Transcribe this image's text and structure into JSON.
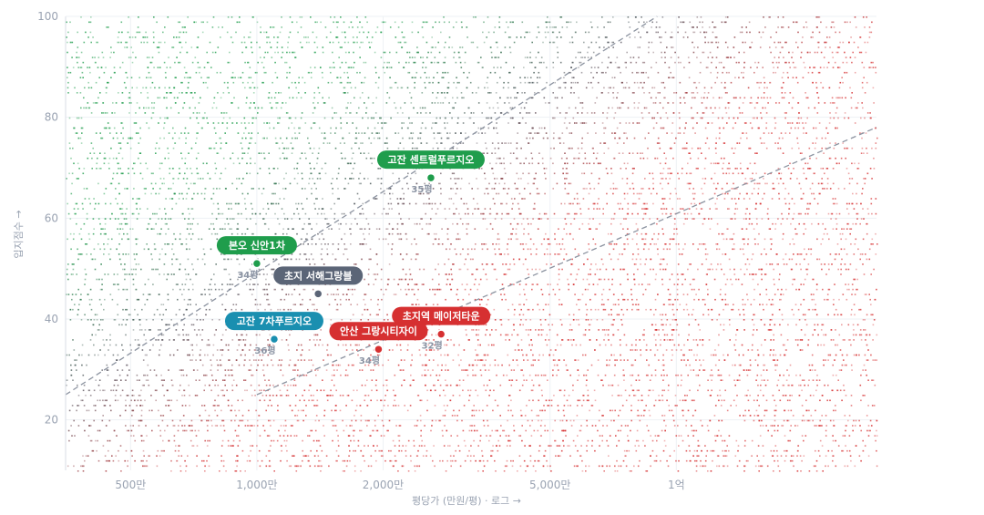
{
  "chart_data": {
    "type": "scatter",
    "title": "",
    "xlabel": "평당가 (만원/평) · 로그 →",
    "ylabel": "입지점수 →",
    "x_scale": "log",
    "xlim": [
      350,
      30000
    ],
    "ylim": [
      10,
      100
    ],
    "x_ticks": [
      {
        "value": 500,
        "label": "500만"
      },
      {
        "value": 1000,
        "label": "1,000만"
      },
      {
        "value": 2000,
        "label": "2,000만"
      },
      {
        "value": 5000,
        "label": "5,000만"
      },
      {
        "value": 10000,
        "label": "1억"
      }
    ],
    "y_ticks": [
      {
        "value": 20,
        "label": "20"
      },
      {
        "value": 40,
        "label": "40"
      },
      {
        "value": 60,
        "label": "60"
      },
      {
        "value": 80,
        "label": "80"
      },
      {
        "value": 100,
        "label": "100"
      }
    ],
    "grid": true,
    "trend_lines": [
      {
        "x": [
          350,
          9000
        ],
        "y": [
          25,
          100
        ]
      },
      {
        "x": [
          1000,
          30000
        ],
        "y": [
          25,
          78
        ]
      }
    ],
    "highlighted_points": [
      {
        "name": "고잔 센트럴푸르지오",
        "sub": "35평",
        "x": 2600,
        "y": 68,
        "color": "#1f9d4c"
      },
      {
        "name": "본오 신안1차",
        "sub": "34평",
        "x": 1000,
        "y": 51,
        "color": "#1f9d4c"
      },
      {
        "name": "초지 서해그랑블",
        "sub": "",
        "x": 1400,
        "y": 45,
        "color": "#5b6577"
      },
      {
        "name": "고잔 7차푸르지오",
        "sub": "36평",
        "x": 1100,
        "y": 36,
        "color": "#1a8fb0"
      },
      {
        "name": "초지역 메이저타운",
        "sub": "32평",
        "x": 2750,
        "y": 37,
        "color": "#d63031"
      },
      {
        "name": "안산 그랑시티자이",
        "sub": "34평",
        "x": 1950,
        "y": 34,
        "color": "#d63031"
      }
    ],
    "background_scatter": {
      "point_count": 9000,
      "x_range": [
        350,
        30000
      ],
      "y_range": [
        10,
        100
      ],
      "color_low_price": "#1f9d4c",
      "color_high_price": "#d63031"
    }
  }
}
